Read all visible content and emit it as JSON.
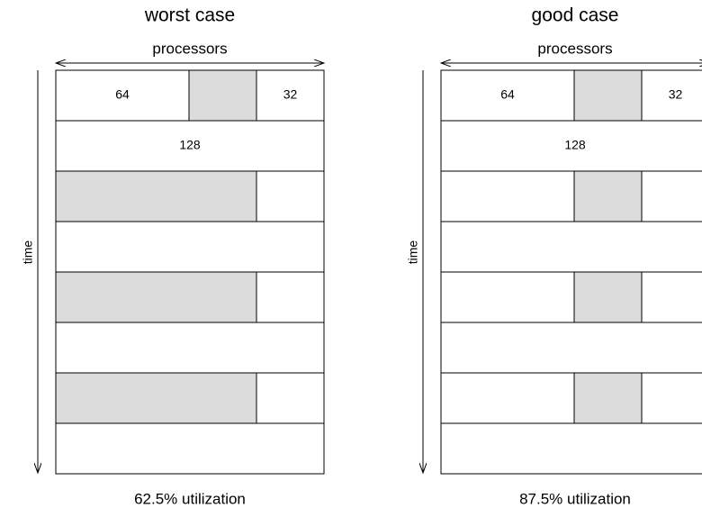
{
  "panels": [
    {
      "title": "worst case",
      "axis_x": "processors",
      "axis_y": "time",
      "cells": {
        "small_a": "64",
        "small_b": "32",
        "wide": "128"
      },
      "caption": "62.5% utilization"
    },
    {
      "title": "good case",
      "axis_x": "processors",
      "axis_y": "time",
      "cells": {
        "small_a": "64",
        "small_b": "32",
        "wide": "128"
      },
      "caption": "87.5% utilization"
    }
  ]
}
